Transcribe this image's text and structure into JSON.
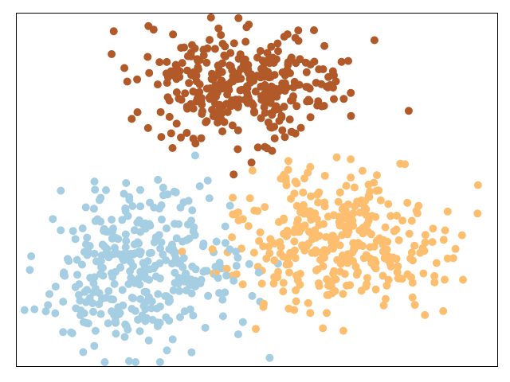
{
  "chart_data": {
    "type": "scatter",
    "title": "",
    "xlabel": "",
    "ylabel": "",
    "ticks_visible": false,
    "grid": false,
    "legend": "none",
    "xlim": [
      -4.2,
      4.9
    ],
    "ylim": [
      -4.1,
      4.1
    ],
    "generator": {
      "kind": "gaussian_blobs",
      "seed": 42,
      "points_per_cluster": 350
    },
    "series": [
      {
        "color": "#a6cee3",
        "center": [
          -1.9,
          -1.8
        ],
        "spread": [
          0.95,
          0.9
        ]
      },
      {
        "color": "#b15928",
        "center": [
          0.0,
          2.4
        ],
        "spread": [
          0.95,
          0.65
        ]
      },
      {
        "color": "#fdbf6f",
        "center": [
          1.9,
          -1.2
        ],
        "spread": [
          1.0,
          0.85
        ]
      }
    ]
  }
}
